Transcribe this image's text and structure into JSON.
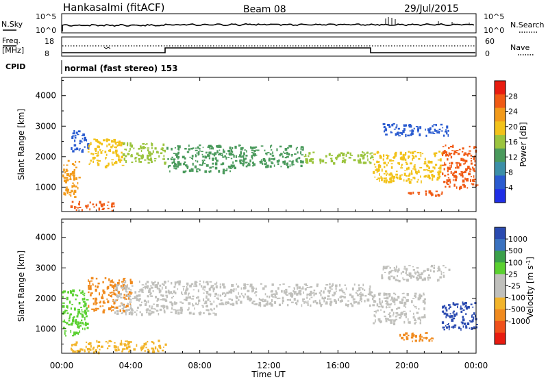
{
  "header": {
    "station": "Hankasalmi (fitACF)",
    "beam": "Beam 08",
    "date": "29/Jul/2015"
  },
  "nsky_panel": {
    "left_label": "N.Sky",
    "left_ticks": [
      "10^5",
      "10^0"
    ],
    "right_ticks": [
      "10^5",
      "10^0"
    ],
    "right_label": "N.Search"
  },
  "freq_panel": {
    "left_label_1": "Freq.",
    "left_label_2": "[MHz]",
    "left_ticks": [
      "18",
      "8"
    ],
    "right_ticks": [
      "60",
      "0"
    ],
    "right_label": "Nave"
  },
  "cpid_panel": {
    "label": "CPID",
    "mode_text": "normal (fast stereo) 153"
  },
  "x_axis": {
    "ticks": [
      "00:00",
      "04:00",
      "08:00",
      "12:00",
      "16:00",
      "20:00",
      "00:00"
    ],
    "label": "Time UT"
  },
  "colors": {
    "power_scale": [
      "#1f2ee6",
      "#2a5bd0",
      "#3c8fa8",
      "#4a9a5c",
      "#9bc43e",
      "#f2c21a",
      "#f29a1a",
      "#f05a14",
      "#e81c10"
    ],
    "velocity_scale": [
      "#e81c10",
      "#f0501a",
      "#f08a1e",
      "#f2b42a",
      "#c0c0bc",
      "#c0c0bc",
      "#5ad030",
      "#3aa04a",
      "#3a72c0",
      "#2a4ab0"
    ]
  },
  "chart_data": [
    {
      "type": "heatmap",
      "title": "Power",
      "ylabel": "Slant Range [km]",
      "yticks": [
        "1000",
        "2000",
        "3000",
        "4000"
      ],
      "ylim": [
        200,
        4600
      ],
      "xlim_hours": [
        0,
        24
      ],
      "colorbar": {
        "label": "Power [dB]",
        "ticks": [
          "4",
          "8",
          "12",
          "16",
          "20",
          "24",
          "28"
        ],
        "range": [
          0,
          30
        ]
      },
      "regions": [
        {
          "t": [
            0.0,
            1.0
          ],
          "r": [
            700,
            1900
          ],
          "level": 22
        },
        {
          "t": [
            0.5,
            1.5
          ],
          "r": [
            2200,
            2900
          ],
          "level": 4
        },
        {
          "t": [
            1.5,
            3.5
          ],
          "r": [
            1700,
            2600
          ],
          "level": 18
        },
        {
          "t": [
            3.5,
            6.0
          ],
          "r": [
            1800,
            2500
          ],
          "level": 14
        },
        {
          "t": [
            6.0,
            10.0
          ],
          "r": [
            1500,
            2400
          ],
          "level": 10
        },
        {
          "t": [
            10.0,
            14.0
          ],
          "r": [
            1700,
            2400
          ],
          "level": 12
        },
        {
          "t": [
            14.0,
            18.0
          ],
          "r": [
            1800,
            2200
          ],
          "level": 14
        },
        {
          "t": [
            18.0,
            22.0
          ],
          "r": [
            1200,
            2200
          ],
          "level": 18
        },
        {
          "t": [
            20.0,
            22.0
          ],
          "r": [
            700,
            900
          ],
          "level": 26
        },
        {
          "t": [
            22.0,
            24.0
          ],
          "r": [
            1000,
            2400
          ],
          "level": 24
        },
        {
          "t": [
            0.5,
            3.0
          ],
          "r": [
            250,
            550
          ],
          "level": 26
        },
        {
          "t": [
            18.5,
            22.5
          ],
          "r": [
            2700,
            3100
          ],
          "level": 4
        }
      ]
    },
    {
      "type": "heatmap",
      "title": "Velocity",
      "ylabel": "Slant Range [km]",
      "yticks": [
        "1000",
        "2000",
        "3000",
        "4000"
      ],
      "ylim": [
        200,
        4600
      ],
      "xlim_hours": [
        0,
        24
      ],
      "colorbar": {
        "label": "Velocity [m s^-1]",
        "ticks": [
          "1000",
          "500",
          "100",
          "25",
          "-25",
          "-100",
          "-500",
          "-1000"
        ]
      },
      "regions": [
        {
          "t": [
            0.0,
            1.5
          ],
          "r": [
            800,
            2300
          ],
          "level": 25
        },
        {
          "t": [
            1.5,
            4.0
          ],
          "r": [
            1600,
            2700
          ],
          "level": -300
        },
        {
          "t": [
            3.0,
            9.0
          ],
          "r": [
            1500,
            2600
          ],
          "level": 0
        },
        {
          "t": [
            9.0,
            18.0
          ],
          "r": [
            1800,
            2500
          ],
          "level": 0
        },
        {
          "t": [
            18.0,
            21.0
          ],
          "r": [
            1200,
            2200
          ],
          "level": 0
        },
        {
          "t": [
            19.5,
            21.5
          ],
          "r": [
            600,
            900
          ],
          "level": -300
        },
        {
          "t": [
            22.0,
            24.0
          ],
          "r": [
            1000,
            1900
          ],
          "level": 600
        },
        {
          "t": [
            0.5,
            6.0
          ],
          "r": [
            250,
            650
          ],
          "level": -50
        },
        {
          "t": [
            18.5,
            22.5
          ],
          "r": [
            2600,
            3100
          ],
          "level": 0
        }
      ]
    }
  ]
}
